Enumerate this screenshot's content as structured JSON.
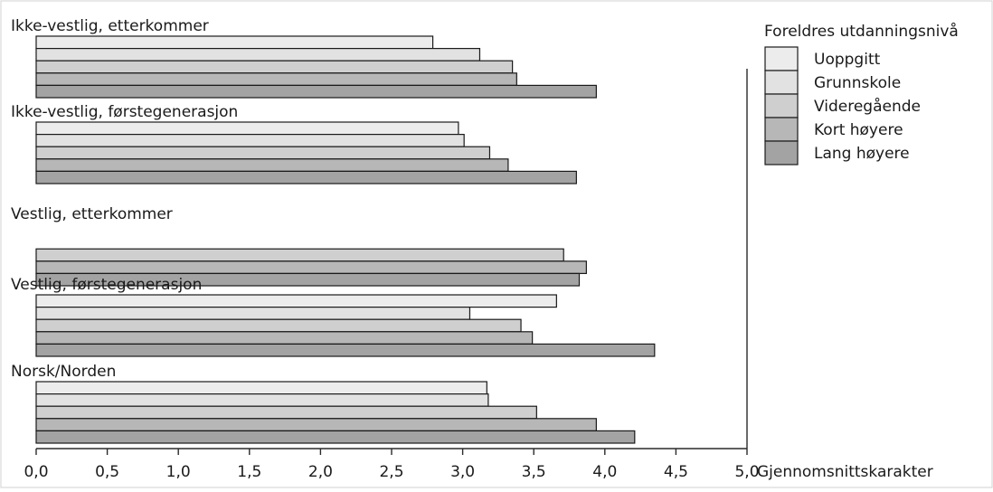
{
  "chart_data": {
    "type": "bar",
    "orientation": "horizontal",
    "groups": [
      "Ikke-vestlig, etterkommer",
      "Ikke-vestlig, førstegenerasjon",
      "Vestlig, etterkommer",
      "Vestlig, førstegenerasjon",
      "Norsk/Norden"
    ],
    "series": [
      {
        "name": "Uoppgitt",
        "color": "#ececec",
        "values": [
          2.79,
          2.97,
          null,
          3.66,
          3.17
        ]
      },
      {
        "name": "Grunnskole",
        "color": "#e2e2e2",
        "values": [
          3.12,
          3.01,
          null,
          3.05,
          3.18
        ]
      },
      {
        "name": "Videregående",
        "color": "#cfcfcf",
        "values": [
          3.35,
          3.19,
          3.71,
          3.41,
          3.52
        ]
      },
      {
        "name": "Kort høyere",
        "color": "#b7b7b7",
        "values": [
          3.38,
          3.32,
          3.87,
          3.49,
          3.94
        ]
      },
      {
        "name": "Lang høyere",
        "color": "#a3a3a3",
        "values": [
          3.94,
          3.8,
          3.82,
          4.35,
          4.21
        ]
      }
    ],
    "legend_title": "Foreldres utdanningsnivå",
    "legend_position": "top-right",
    "xlabel": "Gjennomsnittskarakter",
    "xlim": [
      0,
      5
    ],
    "xticks": [
      "0,0",
      "0,5",
      "1,0",
      "1,5",
      "2,0",
      "2,5",
      "3,0",
      "3,5",
      "4,0",
      "4,5",
      "5,0"
    ],
    "grid": false
  }
}
